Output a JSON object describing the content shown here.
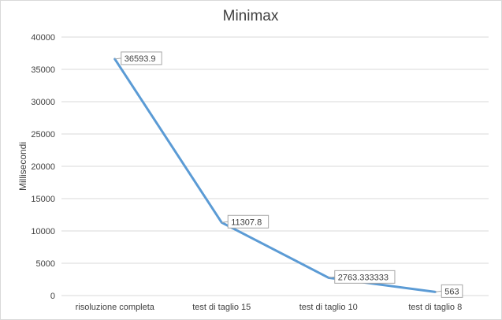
{
  "chart_data": {
    "type": "line",
    "title": "Minimax",
    "xlabel": "",
    "ylabel": "Millisecondi",
    "categories": [
      "risoluzione completa",
      "test di taglio 15",
      "test di taglio 10",
      "test di taglio 8"
    ],
    "series": [
      {
        "values": [
          36593.9,
          11307.8,
          2763.333333,
          563
        ],
        "data_labels": [
          "36593.9",
          "11307.8",
          "2763.333333",
          "563"
        ]
      }
    ],
    "ylim": [
      0,
      40000
    ],
    "yticks": [
      "0",
      "5000",
      "10000",
      "15000",
      "20000",
      "25000",
      "30000",
      "35000",
      "40000"
    ],
    "grid": true,
    "legend": "none",
    "colors": {
      "line": "#5b9bd5",
      "grid": "#d9d9d9",
      "text": "#404040"
    }
  }
}
